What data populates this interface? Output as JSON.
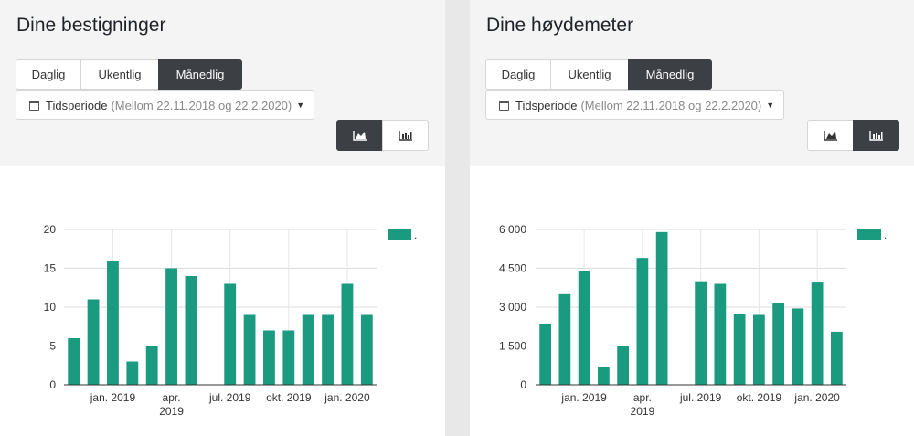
{
  "accent": "#1a9a7e",
  "panels": [
    {
      "title": "Dine bestigninger",
      "tabs": [
        "Daglig",
        "Ukentlig",
        "Månedlig"
      ],
      "active_tab": "Månedlig",
      "period_label": "Tidsperiode",
      "period_range": "(Mellom 22.11.2018 og 22.2.2020)",
      "view_icons": [
        "area-chart-icon",
        "bar-chart-icon"
      ],
      "active_view": "area-chart-icon"
    },
    {
      "title": "Dine høydemeter",
      "tabs": [
        "Daglig",
        "Ukentlig",
        "Månedlig"
      ],
      "active_tab": "Månedlig",
      "period_label": "Tidsperiode",
      "period_range": "(Mellom 22.11.2018 og 22.2.2020)",
      "view_icons": [
        "area-chart-icon",
        "bar-chart-icon"
      ],
      "active_view": "bar-chart-icon"
    }
  ],
  "chart_data": [
    {
      "type": "bar",
      "x": [
        "2018-11",
        "2018-12",
        "2019-01",
        "2019-02",
        "2019-03",
        "2019-04",
        "2019-05",
        "2019-06",
        "2019-07",
        "2019-08",
        "2019-09",
        "2019-10",
        "2019-11",
        "2019-12",
        "2020-01",
        "2020-02"
      ],
      "values": [
        6,
        11,
        16,
        3,
        5,
        15,
        14,
        0,
        13,
        9,
        7,
        7,
        9,
        9,
        13,
        9
      ],
      "ylim": [
        0,
        20
      ],
      "yticks": [
        "0",
        "5",
        "10",
        "15",
        "20"
      ],
      "xtick_labels": [
        {
          "at": "2019-01",
          "lines": [
            "jan. 2019"
          ]
        },
        {
          "at": "2019-04",
          "lines": [
            "apr.",
            "2019"
          ]
        },
        {
          "at": "2019-07",
          "lines": [
            "jul. 2019"
          ]
        },
        {
          "at": "2019-10",
          "lines": [
            "okt. 2019"
          ]
        },
        {
          "at": "2020-01",
          "lines": [
            "jan. 2020"
          ]
        }
      ],
      "legend": ".",
      "legend_position": "top-right",
      "grid": true
    },
    {
      "type": "bar",
      "x": [
        "2018-11",
        "2018-12",
        "2019-01",
        "2019-02",
        "2019-03",
        "2019-04",
        "2019-05",
        "2019-06",
        "2019-07",
        "2019-08",
        "2019-09",
        "2019-10",
        "2019-11",
        "2019-12",
        "2020-01",
        "2020-02"
      ],
      "values": [
        2350,
        3500,
        4400,
        700,
        1500,
        4900,
        5900,
        0,
        4000,
        3900,
        2750,
        2700,
        3150,
        2950,
        3950,
        2050
      ],
      "ylim": [
        0,
        6000
      ],
      "yticks": [
        "0",
        "1 500",
        "3 000",
        "4 500",
        "6 000"
      ],
      "xtick_labels": [
        {
          "at": "2019-01",
          "lines": [
            "jan. 2019"
          ]
        },
        {
          "at": "2019-04",
          "lines": [
            "apr.",
            "2019"
          ]
        },
        {
          "at": "2019-07",
          "lines": [
            "jul. 2019"
          ]
        },
        {
          "at": "2019-10",
          "lines": [
            "okt. 2019"
          ]
        },
        {
          "at": "2020-01",
          "lines": [
            "jan. 2020"
          ]
        }
      ],
      "legend": ".",
      "legend_position": "top-right",
      "grid": true
    }
  ]
}
